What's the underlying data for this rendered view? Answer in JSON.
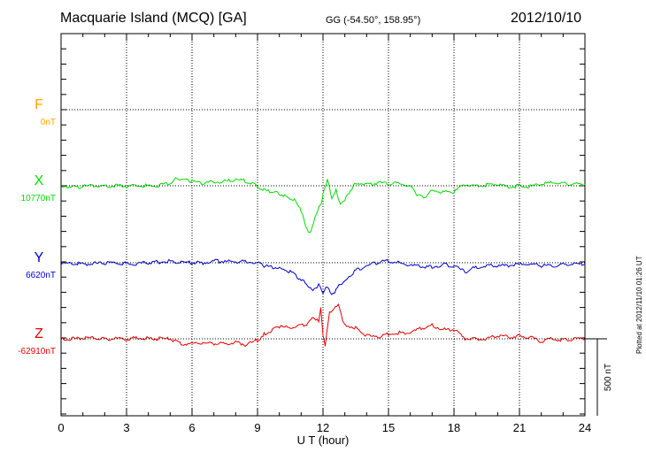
{
  "header": {
    "station": "Macquarie Island (MCQ)  [GA]",
    "coordinates": "GG (-54.50°, 158.95°)",
    "date": "2012/10/10"
  },
  "footer": {
    "plotted": "Plotted at 2012/11/10 01:26 UT"
  },
  "chart_data": {
    "type": "line",
    "title": "Macquarie Island (MCQ)  [GA]",
    "xlabel": "U T (hour)",
    "xlim": [
      0,
      24
    ],
    "xticks": [
      "0",
      "3",
      "6",
      "9",
      "12",
      "15",
      "18",
      "21",
      "24"
    ],
    "grid": true,
    "scale_bar": {
      "label": "500 nT",
      "value": 500
    },
    "series": [
      {
        "name": "F",
        "baseline_label": "0nT",
        "color": "#ffa500",
        "x": [],
        "y": []
      },
      {
        "name": "X",
        "baseline_label": "10770nT",
        "color": "#00dd00",
        "x": [
          0,
          0.5,
          1,
          1.5,
          2,
          2.5,
          3,
          3.5,
          4,
          4.5,
          5,
          5.3,
          5.7,
          6,
          6.5,
          7,
          7.5,
          8,
          8.5,
          9,
          9.3,
          9.7,
          10,
          10.3,
          10.7,
          11,
          11.2,
          11.4,
          11.5,
          11.7,
          11.9,
          12.0,
          12.2,
          12.4,
          12.6,
          12.8,
          13.0,
          13.2,
          13.5,
          14,
          14.5,
          15,
          15.5,
          16,
          16.3,
          16.6,
          17,
          17.5,
          18,
          18.5,
          19,
          19.5,
          20,
          20.5,
          21,
          21.5,
          22,
          22.5,
          23,
          23.5,
          24
        ],
        "y": [
          0,
          -10,
          -5,
          0,
          -5,
          0,
          -5,
          0,
          0,
          0,
          20,
          50,
          40,
          30,
          20,
          25,
          30,
          35,
          30,
          0,
          -30,
          -40,
          -50,
          -70,
          -90,
          -170,
          -260,
          -320,
          -280,
          -180,
          -120,
          -60,
          40,
          -80,
          -20,
          -130,
          -100,
          -40,
          20,
          10,
          20,
          15,
          20,
          0,
          -60,
          -80,
          -30,
          -40,
          -40,
          10,
          0,
          5,
          10,
          -10,
          0,
          -5,
          10,
          20,
          15,
          10,
          10
        ]
      },
      {
        "name": "Y",
        "baseline_label": "6620nT",
        "color": "#0000cc",
        "x": [
          0,
          0.5,
          1,
          1.5,
          2,
          2.5,
          3,
          3.5,
          4,
          4.5,
          5,
          5.5,
          6,
          6.5,
          7,
          7.5,
          8,
          8.5,
          9,
          9.3,
          9.7,
          10,
          10.5,
          11,
          11.3,
          11.6,
          11.8,
          12.0,
          12.2,
          12.4,
          12.6,
          12.8,
          13.0,
          13.5,
          14,
          14.5,
          15,
          15.5,
          16,
          16.5,
          17,
          17.5,
          18,
          18.5,
          19,
          19.5,
          20,
          20.5,
          21,
          21.5,
          22,
          22.5,
          23,
          23.5,
          24
        ],
        "y": [
          -10,
          -5,
          -10,
          -5,
          -5,
          0,
          -5,
          -5,
          0,
          5,
          10,
          0,
          0,
          0,
          10,
          10,
          5,
          10,
          0,
          -20,
          -30,
          -30,
          -60,
          -110,
          -150,
          -180,
          -140,
          -200,
          -150,
          -210,
          -180,
          -140,
          -110,
          -50,
          -20,
          0,
          10,
          0,
          -20,
          -20,
          -30,
          -10,
          -20,
          -60,
          -30,
          -20,
          -20,
          -20,
          -10,
          -10,
          -20,
          -20,
          -10,
          -10,
          -10
        ]
      },
      {
        "name": "Z",
        "baseline_label": "-62910nT",
        "color": "#e60000",
        "x": [
          0,
          0.5,
          1,
          1.5,
          2,
          2.5,
          3,
          3.5,
          4,
          4.5,
          5,
          5.5,
          6,
          6.5,
          7,
          7.5,
          8,
          8.5,
          9,
          9.3,
          9.7,
          10,
          10.5,
          11,
          11.3,
          11.6,
          11.8,
          11.9,
          12.0,
          12.1,
          12.3,
          12.5,
          12.7,
          12.9,
          13.1,
          13.5,
          14,
          14.5,
          15,
          15.5,
          16,
          16.5,
          17,
          17.5,
          18,
          18.5,
          19,
          19.5,
          20,
          20.5,
          21,
          21.5,
          22,
          22.5,
          23,
          23.5,
          24
        ],
        "y": [
          0,
          0,
          5,
          5,
          0,
          0,
          0,
          5,
          5,
          0,
          0,
          -30,
          -30,
          -30,
          -30,
          -30,
          -20,
          -40,
          -10,
          30,
          60,
          80,
          70,
          90,
          100,
          140,
          120,
          200,
          20,
          -40,
          180,
          190,
          220,
          120,
          90,
          70,
          20,
          10,
          30,
          40,
          40,
          70,
          90,
          60,
          60,
          0,
          0,
          0,
          20,
          10,
          20,
          10,
          -20,
          0,
          -10,
          0,
          0
        ]
      }
    ]
  }
}
